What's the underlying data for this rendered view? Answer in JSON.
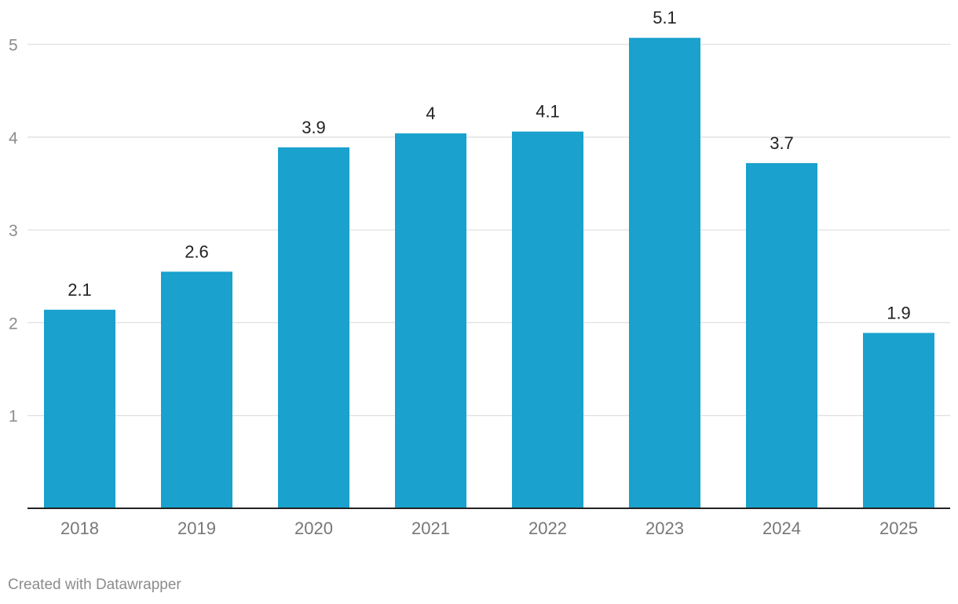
{
  "chart_data": {
    "type": "bar",
    "categories": [
      "2018",
      "2019",
      "2020",
      "2021",
      "2022",
      "2023",
      "2024",
      "2025"
    ],
    "values": [
      2.14,
      2.55,
      3.89,
      4.04,
      4.06,
      5.07,
      3.72,
      1.89
    ],
    "data_labels": [
      "2.1",
      "2.6",
      "3.9",
      "4",
      "4.1",
      "5.1",
      "3.7",
      "1.9"
    ],
    "yticks": [
      1,
      2,
      3,
      4,
      5
    ],
    "ylim": [
      0,
      5.5
    ],
    "grid": true,
    "legend": "none",
    "title": "",
    "xlabel": "",
    "ylabel": "",
    "colors": {
      "bar": "#1aa1cd",
      "gridline": "#e0e0e0",
      "axis": "#222222",
      "tick_text": "#8c8c8c",
      "label_text": "#222222"
    }
  },
  "footer": {
    "credit": "Created with Datawrapper"
  }
}
